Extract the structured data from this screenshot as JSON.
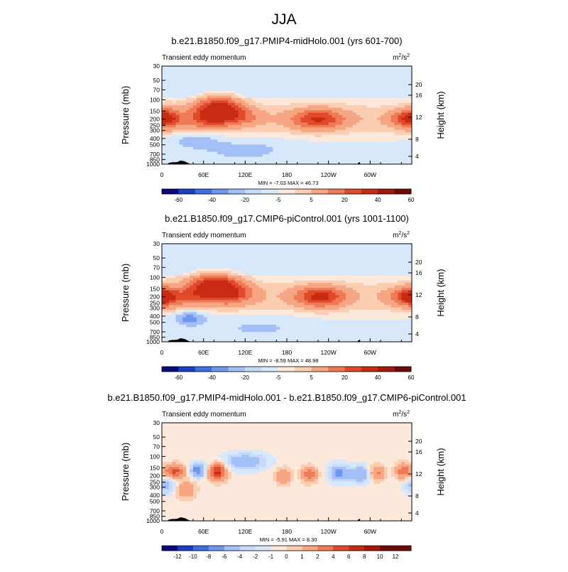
{
  "figure_title": "JJA",
  "chart_data": [
    {
      "type": "heatmap",
      "title": "b.e21.B1850.f09_g17.PMIP4-midHolo.001 (yrs 601-700)",
      "subtitle": "Transient eddy momentum",
      "units_base": "m",
      "units_sup1": "2",
      "units_mid": "/s",
      "units_sup2": "2",
      "ylabel_left": "Pressure (mb)",
      "ylabel_right": "Height (km)",
      "pressure_ticks": [
        "30",
        "50",
        "70",
        "100",
        "150",
        "200",
        "250",
        "300",
        "400",
        "500",
        "700",
        "850",
        "1000"
      ],
      "height_ticks": [
        "20",
        "16",
        "12",
        "8",
        "4"
      ],
      "x_ticks": [
        "0",
        "60E",
        "120E",
        "180",
        "120W",
        "60W"
      ],
      "stats": "MIN = -7.03  MAX = 46.73",
      "colorbar_labels": [
        "-60",
        "-40",
        "-20",
        "-5",
        "5",
        "20",
        "40",
        "60"
      ],
      "palette": [
        "#0a0a7e",
        "#1a3fc2",
        "#3d6fe0",
        "#6f97ee",
        "#a2bff7",
        "#c7daf9",
        "#d8e8fb",
        "#fde8dc",
        "#fbcdb1",
        "#f6a683",
        "#ef7a56",
        "#e04a2a",
        "#c82b13",
        "#a2180a",
        "#6e0a05"
      ],
      "features": [
        {
          "lon": 82,
          "p": 140,
          "amp": 46.7,
          "w": 22,
          "h": 0.42
        },
        {
          "lon": 62,
          "p": 200,
          "amp": 20,
          "w": 22,
          "h": 0.35
        },
        {
          "lon": 110,
          "p": 185,
          "amp": 18,
          "w": 22,
          "h": 0.3
        },
        {
          "lon": 8,
          "p": 190,
          "amp": 22,
          "w": 14,
          "h": 0.35
        },
        {
          "lon": 225,
          "p": 200,
          "amp": 34,
          "w": 26,
          "h": 0.35
        },
        {
          "lon": 355,
          "p": 200,
          "amp": 28,
          "w": 18,
          "h": 0.3
        },
        {
          "lon": 48,
          "p": 420,
          "amp": -6,
          "w": 25,
          "h": 0.3
        },
        {
          "lon": 120,
          "p": 600,
          "amp": -5,
          "w": 45,
          "h": 0.4
        }
      ]
    },
    {
      "type": "heatmap",
      "title": "b.e21.B1850.f09_g17.CMIP6-piControl.001 (yrs 1001-1100)",
      "subtitle": "Transient eddy momentum",
      "units_base": "m",
      "units_sup1": "2",
      "units_mid": "/s",
      "units_sup2": "2",
      "ylabel_left": "Pressure (mb)",
      "ylabel_right": "Height (km)",
      "pressure_ticks": [
        "30",
        "50",
        "70",
        "100",
        "150",
        "200",
        "250",
        "300",
        "400",
        "500",
        "700",
        "850",
        "1000"
      ],
      "height_ticks": [
        "20",
        "16",
        "12",
        "8",
        "4"
      ],
      "x_ticks": [
        "0",
        "60E",
        "120E",
        "180",
        "120W",
        "60W"
      ],
      "stats": "MIN = -8.59  MAX = 48.98",
      "colorbar_labels": [
        "-60",
        "-40",
        "-20",
        "-5",
        "5",
        "20",
        "40",
        "60"
      ],
      "palette": [
        "#0a0a7e",
        "#1a3fc2",
        "#3d6fe0",
        "#6f97ee",
        "#a2bff7",
        "#c7daf9",
        "#d8e8fb",
        "#fde8dc",
        "#fbcdb1",
        "#f6a683",
        "#ef7a56",
        "#e04a2a",
        "#c82b13",
        "#a2180a",
        "#6e0a05"
      ],
      "features": [
        {
          "lon": 75,
          "p": 140,
          "amp": 49,
          "w": 24,
          "h": 0.42
        },
        {
          "lon": 100,
          "p": 180,
          "amp": 25,
          "w": 22,
          "h": 0.35
        },
        {
          "lon": 40,
          "p": 200,
          "amp": 15,
          "w": 18,
          "h": 0.35
        },
        {
          "lon": 5,
          "p": 200,
          "amp": 25,
          "w": 14,
          "h": 0.35
        },
        {
          "lon": 228,
          "p": 200,
          "amp": 38,
          "w": 24,
          "h": 0.35
        },
        {
          "lon": 352,
          "p": 200,
          "amp": 25,
          "w": 18,
          "h": 0.3
        },
        {
          "lon": 40,
          "p": 420,
          "amp": -8.6,
          "w": 18,
          "h": 0.3
        },
        {
          "lon": 140,
          "p": 600,
          "amp": -4,
          "w": 50,
          "h": 0.4
        }
      ]
    },
    {
      "type": "heatmap",
      "title": "b.e21.B1850.f09_g17.PMIP4-midHolo.001 - b.e21.B1850.f09_g17.CMIP6-piControl.001",
      "subtitle": "Transient eddy momentum",
      "units_base": "m",
      "units_sup1": "2",
      "units_mid": "/s",
      "units_sup2": "2",
      "ylabel_left": "Pressure (mb)",
      "ylabel_right": "Height (km)",
      "pressure_ticks": [
        "30",
        "50",
        "70",
        "100",
        "150",
        "200",
        "250",
        "300",
        "400",
        "500",
        "700",
        "850",
        "1000"
      ],
      "height_ticks": [
        "20",
        "16",
        "12",
        "8",
        "4"
      ],
      "x_ticks": [
        "0",
        "60E",
        "120E",
        "180",
        "120W",
        "60W"
      ],
      "stats": "MIN = -5.91  MAX = 8.30",
      "colorbar_labels": [
        "-12",
        "-10",
        "-8",
        "-6",
        "-4",
        "-2",
        "-1",
        "0",
        "1",
        "2",
        "4",
        "6",
        "8",
        "10",
        "12"
      ],
      "palette": [
        "#0a0a7e",
        "#1a3fc2",
        "#3d6fe0",
        "#6f97ee",
        "#a2bff7",
        "#c7daf9",
        "#d8e8fb",
        "#fde8dc",
        "#fbcdb1",
        "#f6a683",
        "#ef7a56",
        "#e04a2a",
        "#c82b13",
        "#a2180a",
        "#6e0a05"
      ],
      "features": [
        {
          "lon": 18,
          "p": 170,
          "amp": 6.5,
          "w": 10,
          "h": 0.25
        },
        {
          "lon": 52,
          "p": 165,
          "amp": -5.9,
          "w": 8,
          "h": 0.25
        },
        {
          "lon": 80,
          "p": 175,
          "amp": 8.3,
          "w": 9,
          "h": 0.3
        },
        {
          "lon": 120,
          "p": 120,
          "amp": -4,
          "w": 22,
          "h": 0.3
        },
        {
          "lon": 175,
          "p": 200,
          "amp": 3.5,
          "w": 8,
          "h": 0.3
        },
        {
          "lon": 212,
          "p": 190,
          "amp": 5,
          "w": 8,
          "h": 0.28
        },
        {
          "lon": 255,
          "p": 180,
          "amp": -5,
          "w": 10,
          "h": 0.3
        },
        {
          "lon": 285,
          "p": 190,
          "amp": -4.5,
          "w": 10,
          "h": 0.3
        },
        {
          "lon": 310,
          "p": 180,
          "amp": 4,
          "w": 8,
          "h": 0.28
        },
        {
          "lon": 348,
          "p": 170,
          "amp": 5,
          "w": 8,
          "h": 0.28
        },
        {
          "lon": 5,
          "p": 280,
          "amp": -3.5,
          "w": 10,
          "h": 0.3
        },
        {
          "lon": 35,
          "p": 330,
          "amp": 3,
          "w": 10,
          "h": 0.35
        }
      ]
    }
  ]
}
